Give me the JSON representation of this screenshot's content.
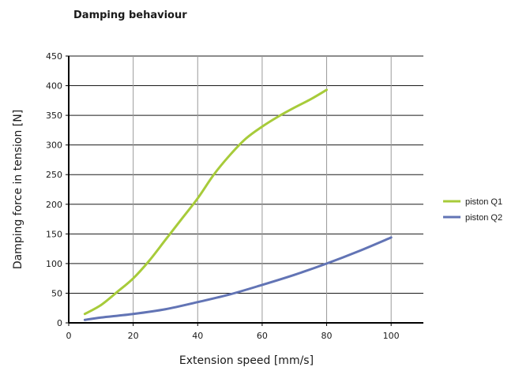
{
  "chart_data": {
    "type": "line",
    "title": "Damping behaviour",
    "xlabel": "Extension speed [mm/s]",
    "ylabel": "Damping force in tension [N]",
    "xlim": [
      0,
      110
    ],
    "ylim": [
      0,
      450
    ],
    "xticks": [
      0,
      20,
      40,
      60,
      80,
      100
    ],
    "yticks": [
      0,
      50,
      100,
      150,
      200,
      250,
      300,
      350,
      400,
      450
    ],
    "grid": true,
    "legend_position": "right",
    "series": [
      {
        "name": "piston Q1",
        "color": "#a7cb3a",
        "x": [
          5,
          10,
          15,
          20,
          25,
          30,
          35,
          40,
          45,
          50,
          55,
          60,
          65,
          70,
          75,
          80
        ],
        "y": [
          15,
          30,
          52,
          75,
          105,
          140,
          175,
          210,
          250,
          283,
          311,
          331,
          348,
          363,
          377,
          393
        ]
      },
      {
        "name": "piston Q2",
        "color": "#6274b5",
        "x": [
          5,
          10,
          20,
          30,
          40,
          50,
          60,
          70,
          80,
          90,
          100
        ],
        "y": [
          5,
          9,
          15,
          23,
          35,
          48,
          64,
          81,
          100,
          121,
          144
        ]
      }
    ]
  }
}
